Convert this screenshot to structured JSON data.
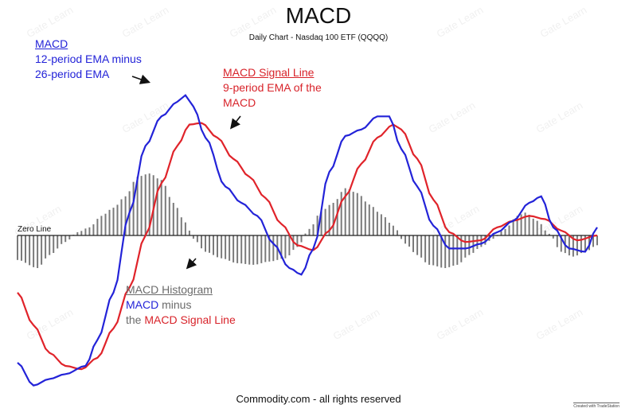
{
  "title": "MACD",
  "subtitle": "Daily Chart - Nasdaq 100 ETF (QQQQ)",
  "footer": "Commodity.com - all rights reserved",
  "brand": "Created with TradeStation",
  "watermark": "Gate Learn",
  "annotations": {
    "macd": {
      "title": "MACD",
      "line1": "12-period EMA minus",
      "line2": "26-period EMA"
    },
    "signal": {
      "title": "MACD Signal Line",
      "line1": "9-period EMA of the",
      "line2": "MACD"
    },
    "histogram": {
      "title": "MACD Histogram",
      "line1_a": "MACD",
      "line1_b": " minus",
      "line2_a": "the ",
      "line2_b": "MACD Signal Line"
    },
    "zero": "Zero Line"
  },
  "colors": {
    "macd": "#2323d8",
    "signal": "#e0232a",
    "histogram": "#7a7a7a",
    "zero": "#222222"
  },
  "chart_data": {
    "type": "line",
    "title": "MACD",
    "subtitle": "Daily Chart - Nasdaq 100 ETF (QQQQ)",
    "x_count": 146,
    "ylim": [
      -1,
      1
    ],
    "series": [
      {
        "name": "MACD",
        "knots": [
          [
            0,
            -0.78
          ],
          [
            4,
            -0.92
          ],
          [
            8,
            -0.88
          ],
          [
            12,
            -0.85
          ],
          [
            17,
            -0.8
          ],
          [
            20,
            -0.64
          ],
          [
            24,
            -0.35
          ],
          [
            28,
            0.14
          ],
          [
            32,
            0.55
          ],
          [
            36,
            0.73
          ],
          [
            40,
            0.82
          ],
          [
            42,
            0.86
          ],
          [
            44,
            0.79
          ],
          [
            47,
            0.6
          ],
          [
            52,
            0.3
          ],
          [
            56,
            0.2
          ],
          [
            60,
            0.12
          ],
          [
            64,
            -0.05
          ],
          [
            68,
            -0.2
          ],
          [
            71,
            -0.24
          ],
          [
            74,
            -0.08
          ],
          [
            78,
            0.39
          ],
          [
            82,
            0.61
          ],
          [
            86,
            0.65
          ],
          [
            90,
            0.73
          ],
          [
            93,
            0.73
          ],
          [
            96,
            0.53
          ],
          [
            100,
            0.3
          ],
          [
            104,
            0.06
          ],
          [
            108,
            -0.08
          ],
          [
            112,
            -0.08
          ],
          [
            116,
            -0.05
          ],
          [
            120,
            0.02
          ],
          [
            124,
            0.09
          ],
          [
            128,
            0.2
          ],
          [
            131,
            0.24
          ],
          [
            134,
            0.05
          ],
          [
            138,
            -0.08
          ],
          [
            142,
            -0.1
          ],
          [
            145,
            0.05
          ]
        ]
      },
      {
        "name": "MACD Signal Line",
        "knots": [
          [
            0,
            -0.35
          ],
          [
            4,
            -0.55
          ],
          [
            8,
            -0.72
          ],
          [
            12,
            -0.8
          ],
          [
            16,
            -0.82
          ],
          [
            20,
            -0.75
          ],
          [
            24,
            -0.57
          ],
          [
            28,
            -0.32
          ],
          [
            32,
            0.0
          ],
          [
            36,
            0.32
          ],
          [
            40,
            0.55
          ],
          [
            43,
            0.68
          ],
          [
            46,
            0.69
          ],
          [
            50,
            0.6
          ],
          [
            54,
            0.47
          ],
          [
            58,
            0.36
          ],
          [
            62,
            0.23
          ],
          [
            66,
            0.07
          ],
          [
            70,
            -0.06
          ],
          [
            74,
            -0.09
          ],
          [
            78,
            0.03
          ],
          [
            82,
            0.24
          ],
          [
            86,
            0.44
          ],
          [
            90,
            0.6
          ],
          [
            94,
            0.68
          ],
          [
            96,
            0.65
          ],
          [
            100,
            0.47
          ],
          [
            104,
            0.22
          ],
          [
            108,
            0.02
          ],
          [
            112,
            -0.04
          ],
          [
            116,
            -0.03
          ],
          [
            120,
            0.05
          ],
          [
            124,
            0.09
          ],
          [
            128,
            0.12
          ],
          [
            132,
            0.1
          ],
          [
            136,
            0.03
          ],
          [
            140,
            -0.03
          ],
          [
            145,
            0.0
          ]
        ]
      },
      {
        "name": "MACD Histogram",
        "knots": [
          [
            0,
            -0.15
          ],
          [
            5,
            -0.2
          ],
          [
            8,
            -0.12
          ],
          [
            12,
            -0.04
          ],
          [
            15,
            0.02
          ],
          [
            18,
            0.05
          ],
          [
            21,
            0.12
          ],
          [
            24,
            0.17
          ],
          [
            27,
            0.24
          ],
          [
            30,
            0.36
          ],
          [
            33,
            0.38
          ],
          [
            36,
            0.34
          ],
          [
            39,
            0.2
          ],
          [
            42,
            0.08
          ],
          [
            44,
            -0.02
          ],
          [
            47,
            -0.1
          ],
          [
            51,
            -0.14
          ],
          [
            55,
            -0.17
          ],
          [
            59,
            -0.18
          ],
          [
            63,
            -0.16
          ],
          [
            67,
            -0.14
          ],
          [
            70,
            -0.07
          ],
          [
            73,
            0.04
          ],
          [
            76,
            0.15
          ],
          [
            79,
            0.2
          ],
          [
            82,
            0.29
          ],
          [
            85,
            0.26
          ],
          [
            88,
            0.19
          ],
          [
            91,
            0.13
          ],
          [
            94,
            0.06
          ],
          [
            97,
            -0.05
          ],
          [
            100,
            -0.12
          ],
          [
            103,
            -0.18
          ],
          [
            107,
            -0.2
          ],
          [
            110,
            -0.18
          ],
          [
            113,
            -0.12
          ],
          [
            116,
            -0.07
          ],
          [
            119,
            -0.02
          ],
          [
            122,
            0.04
          ],
          [
            125,
            0.12
          ],
          [
            127,
            0.14
          ],
          [
            130,
            0.09
          ],
          [
            133,
            0.01
          ],
          [
            136,
            -0.1
          ],
          [
            139,
            -0.13
          ],
          [
            142,
            -0.1
          ],
          [
            145,
            -0.06
          ]
        ]
      }
    ]
  }
}
